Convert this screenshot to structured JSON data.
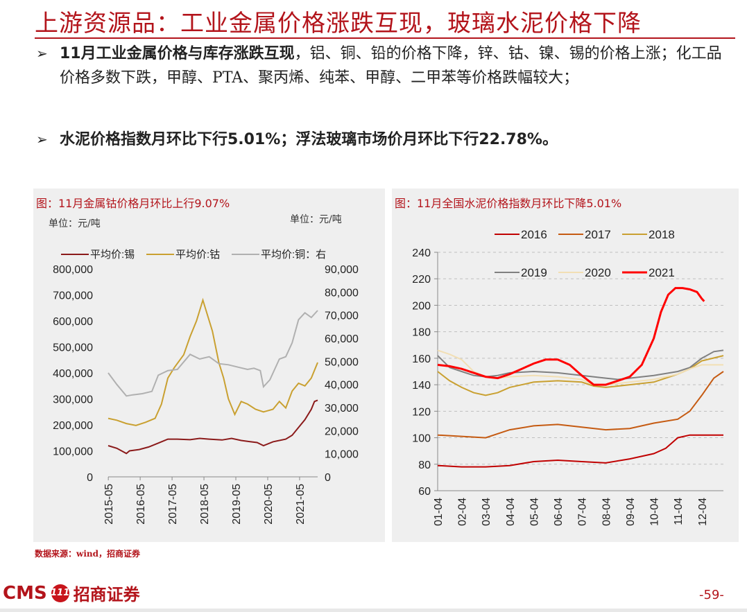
{
  "title": "上游资源品：工业金属价格涨跌互现，玻璃水泥价格下降",
  "bullets": [
    {
      "bold": "11月工业金属价格与库存涨跌互现",
      "text": "，铝、铜、铅的价格下降，锌、钴、镍、锡的价格上涨；化工品价格多数下跌，甲醇、PTA、聚丙烯、纯苯、甲醇、二甲苯等价格跌幅较大；"
    },
    {
      "bold": "水泥价格指数月环比下行5.01%；浮法玻璃市场价月环比下行22.78%。",
      "text": ""
    }
  ],
  "chart_left": {
    "panel_title": "图：11月金属钴价格月环比上行9.07%",
    "unit_left": "单位：元/吨",
    "unit_right": "单位：元/吨"
  },
  "chart_right": {
    "panel_title": "图：11月全国水泥价格指数月环比下降5.01%"
  },
  "source": "数据来源：wind，招商证券",
  "footer": {
    "logo_text": "CMS",
    "logo_badge": "111",
    "logo_cn": "招商证券",
    "page": "-59-"
  },
  "colors": {
    "accent": "#b3141b",
    "tin": "#8b1a1a",
    "cobalt": "#c9a030",
    "copper": "#b0b0b0"
  },
  "chart_data": [
    {
      "type": "line",
      "x_labels": [
        "2015-05",
        "2016-05",
        "2017-05",
        "2018-05",
        "2019-05",
        "2020-05",
        "2021-05"
      ],
      "x_range": [
        2015.33,
        2021.9
      ],
      "y_left": {
        "ylim": [
          0,
          800000
        ],
        "ticks": [
          "0",
          "100,000",
          "200,000",
          "300,000",
          "400,000",
          "500,000",
          "600,000",
          "700,000",
          "800,000"
        ]
      },
      "y_right": {
        "ylim": [
          0,
          90000
        ],
        "ticks": [
          "0",
          "10,000",
          "20,000",
          "30,000",
          "40,000",
          "50,000",
          "60,000",
          "70,000",
          "80,000",
          "90,000"
        ]
      },
      "legend_position": "top",
      "series": [
        {
          "name": "平均价:锡",
          "axis": "left",
          "color": "#8b1a1a",
          "points": [
            [
              2015.33,
              120000
            ],
            [
              2015.6,
              110000
            ],
            [
              2015.9,
              90000
            ],
            [
              2016.0,
              100000
            ],
            [
              2016.3,
              105000
            ],
            [
              2016.6,
              115000
            ],
            [
              2016.9,
              130000
            ],
            [
              2017.2,
              145000
            ],
            [
              2017.5,
              145000
            ],
            [
              2017.9,
              143000
            ],
            [
              2018.2,
              148000
            ],
            [
              2018.5,
              145000
            ],
            [
              2018.9,
              142000
            ],
            [
              2019.2,
              148000
            ],
            [
              2019.5,
              140000
            ],
            [
              2019.8,
              135000
            ],
            [
              2020.0,
              132000
            ],
            [
              2020.2,
              120000
            ],
            [
              2020.5,
              135000
            ],
            [
              2020.9,
              145000
            ],
            [
              2021.1,
              160000
            ],
            [
              2021.3,
              190000
            ],
            [
              2021.5,
              220000
            ],
            [
              2021.7,
              260000
            ],
            [
              2021.8,
              290000
            ],
            [
              2021.9,
              295000
            ]
          ]
        },
        {
          "name": "平均价:钴",
          "axis": "left",
          "color": "#c9a030",
          "points": [
            [
              2015.33,
              225000
            ],
            [
              2015.6,
              218000
            ],
            [
              2015.9,
              205000
            ],
            [
              2016.2,
              198000
            ],
            [
              2016.5,
              210000
            ],
            [
              2016.8,
              225000
            ],
            [
              2017.0,
              280000
            ],
            [
              2017.2,
              380000
            ],
            [
              2017.4,
              420000
            ],
            [
              2017.7,
              470000
            ],
            [
              2017.9,
              540000
            ],
            [
              2018.1,
              600000
            ],
            [
              2018.3,
              680000
            ],
            [
              2018.45,
              620000
            ],
            [
              2018.6,
              560000
            ],
            [
              2018.8,
              440000
            ],
            [
              2018.95,
              380000
            ],
            [
              2019.1,
              300000
            ],
            [
              2019.3,
              240000
            ],
            [
              2019.5,
              290000
            ],
            [
              2019.7,
              280000
            ],
            [
              2019.95,
              260000
            ],
            [
              2020.2,
              250000
            ],
            [
              2020.5,
              260000
            ],
            [
              2020.7,
              290000
            ],
            [
              2020.9,
              265000
            ],
            [
              2021.1,
              330000
            ],
            [
              2021.3,
              360000
            ],
            [
              2021.5,
              350000
            ],
            [
              2021.7,
              380000
            ],
            [
              2021.9,
              440000
            ]
          ]
        },
        {
          "name": "平均价:铜：右",
          "axis": "right",
          "color": "#b0b0b0",
          "points": [
            [
              2015.33,
              45000
            ],
            [
              2015.6,
              40000
            ],
            [
              2015.9,
              35000
            ],
            [
              2016.1,
              35500
            ],
            [
              2016.4,
              36000
            ],
            [
              2016.7,
              37000
            ],
            [
              2016.9,
              44000
            ],
            [
              2017.2,
              46000
            ],
            [
              2017.5,
              46500
            ],
            [
              2017.9,
              53000
            ],
            [
              2018.2,
              51000
            ],
            [
              2018.5,
              52000
            ],
            [
              2018.8,
              49000
            ],
            [
              2019.1,
              48500
            ],
            [
              2019.4,
              47500
            ],
            [
              2019.7,
              46500
            ],
            [
              2019.9,
              47000
            ],
            [
              2020.1,
              46000
            ],
            [
              2020.2,
              39000
            ],
            [
              2020.4,
              42000
            ],
            [
              2020.7,
              51000
            ],
            [
              2020.9,
              52000
            ],
            [
              2021.1,
              58000
            ],
            [
              2021.3,
              68000
            ],
            [
              2021.5,
              71000
            ],
            [
              2021.7,
              69000
            ],
            [
              2021.9,
              72000
            ]
          ]
        }
      ]
    },
    {
      "type": "line",
      "x_labels": [
        "01-04",
        "02-04",
        "03-04",
        "04-04",
        "05-04",
        "06-04",
        "07-04",
        "08-04",
        "09-04",
        "10-04",
        "11-04",
        "12-04"
      ],
      "x_range": [
        0,
        11.9
      ],
      "ylim": [
        60,
        240
      ],
      "y_ticks": [
        "60",
        "80",
        "100",
        "120",
        "140",
        "160",
        "180",
        "200",
        "220",
        "240"
      ],
      "legend_position": "top",
      "series": [
        {
          "name": "2016",
          "color": "#c00000",
          "points": [
            [
              0,
              79
            ],
            [
              1,
              78
            ],
            [
              2,
              78
            ],
            [
              3,
              79
            ],
            [
              4,
              82
            ],
            [
              5,
              83
            ],
            [
              6,
              82
            ],
            [
              7,
              81
            ],
            [
              8,
              84
            ],
            [
              9,
              88
            ],
            [
              9.5,
              92
            ],
            [
              10,
              100
            ],
            [
              10.5,
              102
            ],
            [
              11,
              102
            ],
            [
              11.9,
              102
            ]
          ]
        },
        {
          "name": "2017",
          "color": "#c55a11",
          "points": [
            [
              0,
              102
            ],
            [
              1,
              101
            ],
            [
              2,
              100
            ],
            [
              3,
              106
            ],
            [
              4,
              109
            ],
            [
              5,
              110
            ],
            [
              6,
              108
            ],
            [
              7,
              106
            ],
            [
              8,
              107
            ],
            [
              9,
              111
            ],
            [
              10,
              114
            ],
            [
              10.5,
              120
            ],
            [
              11,
              132
            ],
            [
              11.5,
              145
            ],
            [
              11.9,
              150
            ]
          ]
        },
        {
          "name": "2018",
          "color": "#c9a030",
          "points": [
            [
              0,
              150
            ],
            [
              0.5,
              143
            ],
            [
              1,
              138
            ],
            [
              1.5,
              134
            ],
            [
              2,
              132
            ],
            [
              2.5,
              134
            ],
            [
              3,
              138
            ],
            [
              4,
              142
            ],
            [
              5,
              143
            ],
            [
              6,
              142
            ],
            [
              6.5,
              139
            ],
            [
              7,
              138
            ],
            [
              8,
              140
            ],
            [
              9,
              142
            ],
            [
              9.5,
              145
            ],
            [
              10,
              148
            ],
            [
              10.5,
              152
            ],
            [
              11,
              158
            ],
            [
              11.9,
              162
            ]
          ]
        },
        {
          "name": "2019",
          "color": "#808080",
          "points": [
            [
              0,
              162
            ],
            [
              0.5,
              153
            ],
            [
              1,
              150
            ],
            [
              1.5,
              147
            ],
            [
              2,
              146
            ],
            [
              2.5,
              147
            ],
            [
              3,
              149
            ],
            [
              4,
              150
            ],
            [
              5,
              149
            ],
            [
              6,
              147
            ],
            [
              7,
              145
            ],
            [
              7.5,
              144
            ],
            [
              8,
              145
            ],
            [
              9,
              147
            ],
            [
              10,
              150
            ],
            [
              10.5,
              153
            ],
            [
              11,
              160
            ],
            [
              11.5,
              165
            ],
            [
              11.9,
              166
            ]
          ]
        },
        {
          "name": "2020",
          "color": "#f2dfb4",
          "points": [
            [
              0,
              166
            ],
            [
              0.5,
              163
            ],
            [
              1,
              159
            ],
            [
              1.5,
              150
            ],
            [
              2,
              146
            ],
            [
              2.5,
              145
            ],
            [
              3,
              146
            ],
            [
              4,
              147
            ],
            [
              5,
              146
            ],
            [
              6,
              144
            ],
            [
              6.5,
              140
            ],
            [
              7,
              140
            ],
            [
              7.5,
              141
            ],
            [
              8,
              142
            ],
            [
              9,
              144
            ],
            [
              10,
              148
            ],
            [
              10.5,
              152
            ],
            [
              11,
              155
            ],
            [
              11.9,
              155
            ]
          ]
        },
        {
          "name": "2021",
          "color": "#ff0000",
          "points": [
            [
              0,
              155
            ],
            [
              0.5,
              154
            ],
            [
              1,
              152
            ],
            [
              1.5,
              149
            ],
            [
              2,
              146
            ],
            [
              2.5,
              145
            ],
            [
              3,
              148
            ],
            [
              3.5,
              152
            ],
            [
              4,
              156
            ],
            [
              4.5,
              159
            ],
            [
              5,
              159
            ],
            [
              5.5,
              155
            ],
            [
              6,
              147
            ],
            [
              6.5,
              140
            ],
            [
              7,
              140
            ],
            [
              7.5,
              143
            ],
            [
              8,
              146
            ],
            [
              8.5,
              155
            ],
            [
              9,
              175
            ],
            [
              9.3,
              195
            ],
            [
              9.6,
              208
            ],
            [
              9.9,
              213
            ],
            [
              10.2,
              213
            ],
            [
              10.5,
              212
            ],
            [
              10.8,
              210
            ],
            [
              11.0,
              205
            ],
            [
              11.1,
              203
            ]
          ]
        }
      ]
    }
  ]
}
